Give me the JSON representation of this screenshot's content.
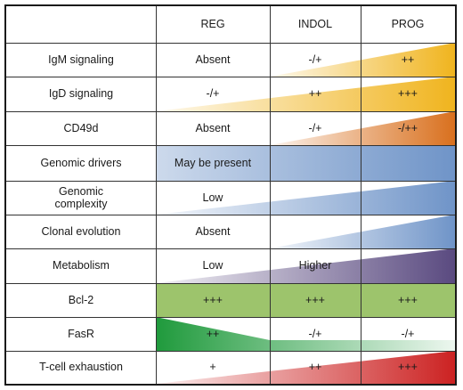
{
  "columns": [
    "REG",
    "INDOL",
    "PROG"
  ],
  "rows": [
    {
      "label": "IgM signaling",
      "values": [
        "Absent",
        "-/+",
        "++"
      ],
      "fill": {
        "type": "wedge",
        "color": "#f0b41e",
        "start_col": 1
      }
    },
    {
      "label": "IgD signaling",
      "values": [
        "-/+",
        "++",
        "+++"
      ],
      "fill": {
        "type": "wedge",
        "color": "#f0b41e",
        "start_col": 0
      }
    },
    {
      "label": "CD49d",
      "values": [
        "Absent",
        "-/+",
        "-/++"
      ],
      "fill": {
        "type": "wedge",
        "color": "#d9701e",
        "start_col": 1
      }
    },
    {
      "label": "Genomic drivers",
      "values": [
        "May be present",
        "",
        ""
      ],
      "fill": {
        "type": "band",
        "color": "#6f94c8"
      }
    },
    {
      "label": "Genomic complexity",
      "values": [
        "Low",
        "",
        ""
      ],
      "fill": {
        "type": "wedge",
        "color": "#6f94c8",
        "start_col": 0
      }
    },
    {
      "label": "Clonal evolution",
      "values": [
        "Absent",
        "",
        ""
      ],
      "fill": {
        "type": "wedge",
        "color": "#6f94c8",
        "start_col": 1
      }
    },
    {
      "label": "Metabolism",
      "values": [
        "Low",
        "Higher",
        ""
      ],
      "fill": {
        "type": "wedge",
        "color": "#5a4a80",
        "start_col": 0
      }
    },
    {
      "label": "Bcl-2",
      "values": [
        "+++",
        "+++",
        "+++"
      ],
      "fill": {
        "type": "solid",
        "color": "#9dc46c"
      }
    },
    {
      "label": "FasR",
      "values": [
        "++",
        "-/+",
        "-/+"
      ],
      "fill": {
        "type": "fas",
        "color": "#1f9a3c"
      }
    },
    {
      "label": "T-cell exhaustion",
      "values": [
        "+",
        "++",
        "+++"
      ],
      "fill": {
        "type": "wedge",
        "color": "#cc2222",
        "start_col": 0
      }
    }
  ]
}
